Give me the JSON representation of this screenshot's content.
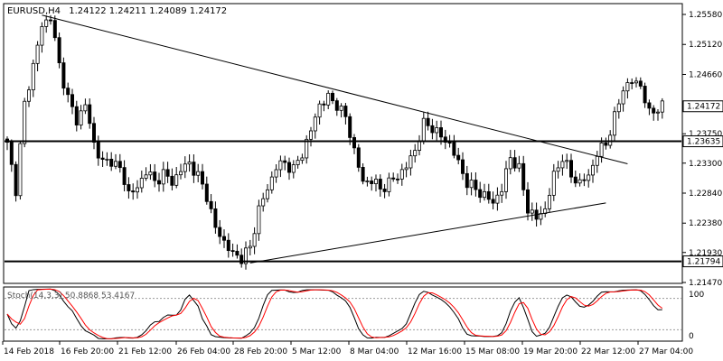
{
  "header": {
    "symbol": "EURUSD,H4",
    "ohlc": "1.24122 1.24211 1.24089 1.24172"
  },
  "oscillator": {
    "title": "Stoch(14,3,3) 50.8868 53.4167",
    "top_value": "100",
    "bottom_value": "0"
  },
  "colors": {
    "background": "#ffffff",
    "candle": "#000000",
    "stoch_main": "#000000",
    "stoch_signal": "#ff0000",
    "level_line": "#000000"
  },
  "chart_data": {
    "type": "candlestick",
    "y_ticks": [
      "1.25580",
      "1.25120",
      "1.24660",
      "1.23750",
      "1.23300",
      "1.22840",
      "1.22380",
      "1.21930",
      "1.21470"
    ],
    "ylim": [
      1.2147,
      1.2558
    ],
    "x_labels": [
      "14 Feb 2018",
      "16 Feb 20:00",
      "21 Feb 12:00",
      "26 Feb 04:00",
      "28 Feb 20:00",
      "5 Mar 12:00",
      "8 Mar 04:00",
      "12 Mar 16:00",
      "15 Mar 08:00",
      "19 Mar 20:00",
      "22 Mar 12:00",
      "27 Mar 04:00"
    ],
    "levels": [
      {
        "name": "resistance",
        "value": 1.23635,
        "label": "1.23635"
      },
      {
        "name": "support",
        "value": 1.21794,
        "label": "1.21794"
      }
    ],
    "current_price": {
      "value": 1.24172,
      "label": "1.24172"
    },
    "trendlines": [
      {
        "name": "upper-trendline",
        "from": {
          "bar": 8,
          "price": 1.2557
        },
        "to": {
          "bar": 143,
          "price": 1.2329
        }
      },
      {
        "name": "lower-trendline",
        "from": {
          "bar": 56,
          "price": 1.2177
        },
        "to": {
          "bar": 138,
          "price": 1.2269
        }
      }
    ],
    "stoch_levels": [
      80,
      20
    ],
    "anchors": [
      [
        0,
        1.2358
      ],
      [
        2,
        1.229
      ],
      [
        4,
        1.242
      ],
      [
        6,
        1.248
      ],
      [
        8,
        1.254
      ],
      [
        10,
        1.2555
      ],
      [
        12,
        1.248
      ],
      [
        14,
        1.243
      ],
      [
        16,
        1.2395
      ],
      [
        18,
        1.242
      ],
      [
        20,
        1.236
      ],
      [
        22,
        1.233
      ],
      [
        24,
        1.2335
      ],
      [
        26,
        1.232
      ],
      [
        28,
        1.2285
      ],
      [
        30,
        1.229
      ],
      [
        32,
        1.232
      ],
      [
        34,
        1.23
      ],
      [
        36,
        1.2315
      ],
      [
        38,
        1.23
      ],
      [
        40,
        1.232
      ],
      [
        42,
        1.233
      ],
      [
        44,
        1.231
      ],
      [
        46,
        1.228
      ],
      [
        48,
        1.223
      ],
      [
        50,
        1.221
      ],
      [
        52,
        1.219
      ],
      [
        54,
        1.2185
      ],
      [
        56,
        1.22
      ],
      [
        58,
        1.226
      ],
      [
        60,
        1.229
      ],
      [
        62,
        1.2325
      ],
      [
        64,
        1.233
      ],
      [
        66,
        1.232
      ],
      [
        68,
        1.2345
      ],
      [
        70,
        1.238
      ],
      [
        72,
        1.242
      ],
      [
        74,
        1.243
      ],
      [
        76,
        1.242
      ],
      [
        78,
        1.24
      ],
      [
        80,
        1.235
      ],
      [
        82,
        1.23
      ],
      [
        84,
        1.2305
      ],
      [
        86,
        1.229
      ],
      [
        88,
        1.23
      ],
      [
        90,
        1.231
      ],
      [
        92,
        1.2325
      ],
      [
        94,
        1.235
      ],
      [
        96,
        1.239
      ],
      [
        98,
        1.2385
      ],
      [
        100,
        1.237
      ],
      [
        102,
        1.236
      ],
      [
        104,
        1.233
      ],
      [
        106,
        1.23
      ],
      [
        108,
        1.229
      ],
      [
        110,
        1.228
      ],
      [
        112,
        1.227
      ],
      [
        114,
        1.229
      ],
      [
        116,
        1.234
      ],
      [
        118,
        1.232
      ],
      [
        120,
        1.226
      ],
      [
        122,
        1.2245
      ],
      [
        124,
        1.226
      ],
      [
        126,
        1.231
      ],
      [
        128,
        1.234
      ],
      [
        130,
        1.231
      ],
      [
        132,
        1.23
      ],
      [
        134,
        1.231
      ],
      [
        136,
        1.2345
      ],
      [
        138,
        1.236
      ],
      [
        140,
        1.24
      ],
      [
        142,
        1.2445
      ],
      [
        144,
        1.2455
      ],
      [
        146,
        1.245
      ],
      [
        148,
        1.2405
      ],
      [
        150,
        1.2415
      ],
      [
        151,
        1.2417
      ]
    ]
  }
}
